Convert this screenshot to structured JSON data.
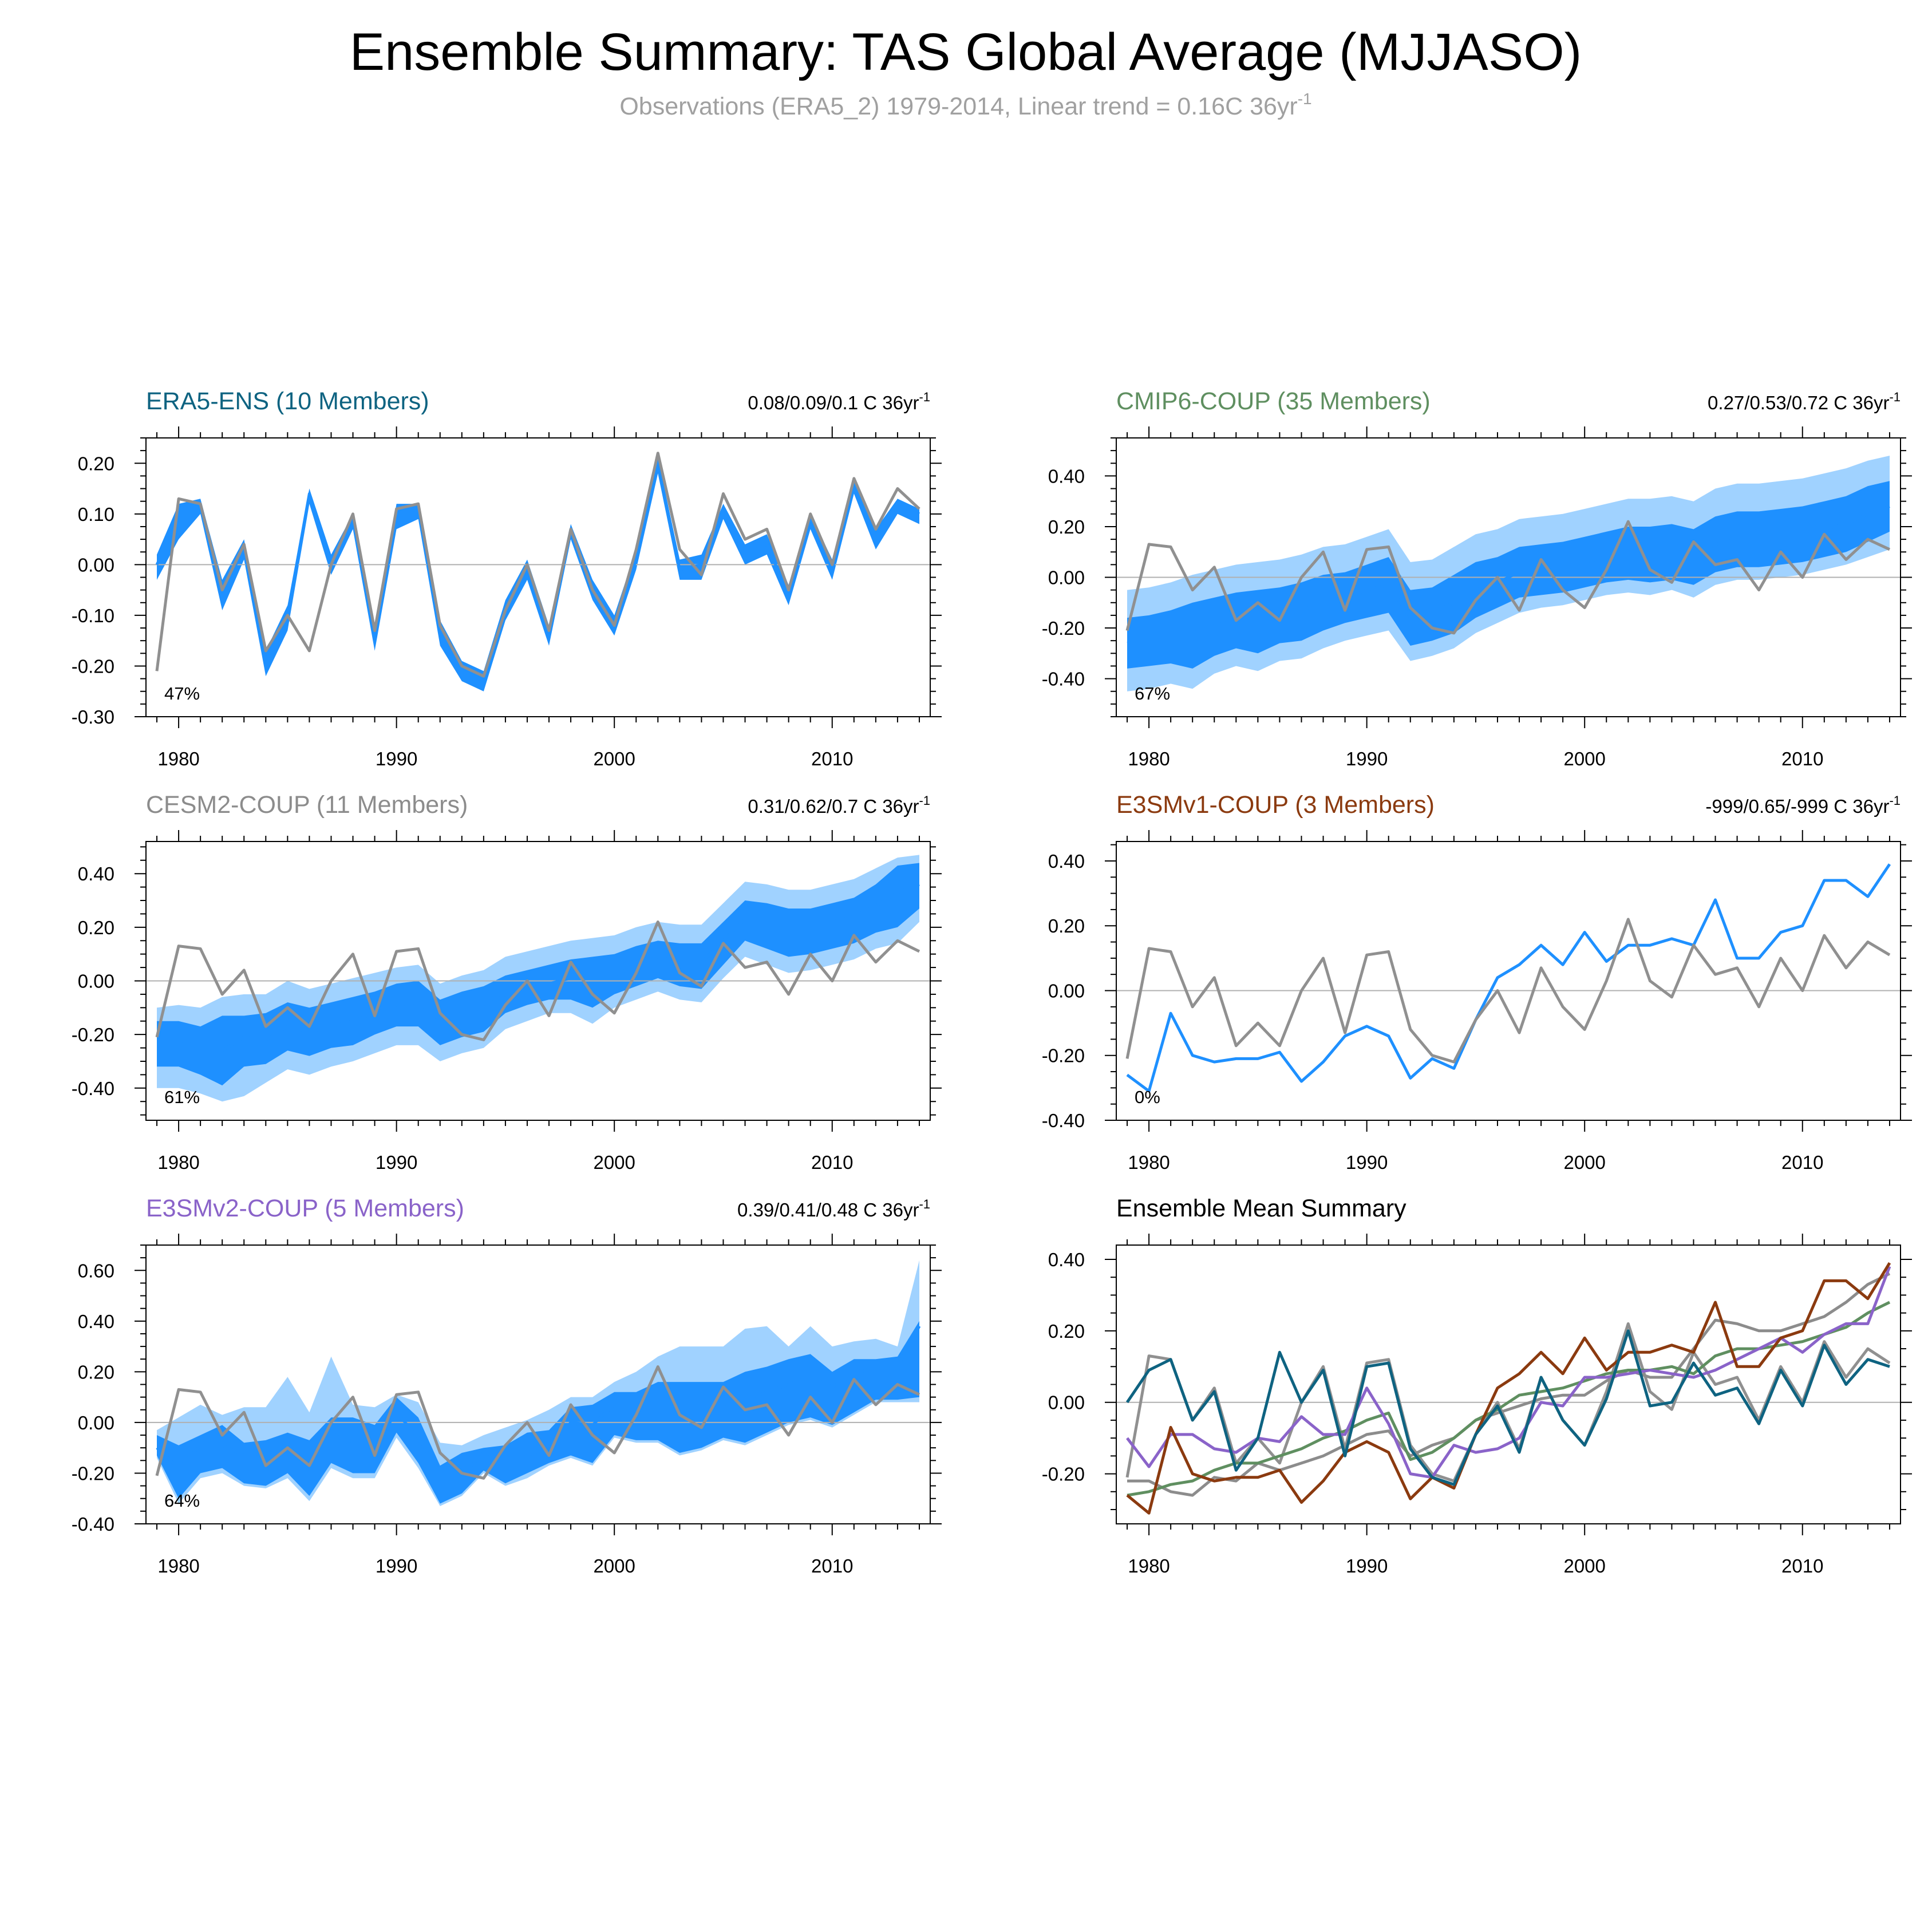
{
  "figure": {
    "title": "Ensemble Summary: TAS Global Average (MJJASO)",
    "subtitle": "Observations (ERA5_2) 1979-2014, Linear trend = 0.16C 36yr",
    "subtitle_sup": "-1"
  },
  "colors": {
    "mean_line": "#1e90ff",
    "band_inner": "#1e90ff",
    "band_outer": "#a0d2ff",
    "observations": "#909090",
    "zero_line": "#b0b0b0",
    "era5": "#0e6381",
    "cmip6": "#5f8f60",
    "cesm2": "#8c8c8c",
    "e3smv1": "#8b3a0f",
    "e3smv2": "#8a63c9"
  },
  "chart_data": [
    {
      "id": "era5",
      "type": "line",
      "title": "ERA5-ENS (10 Members)",
      "title_color": "#0e6381",
      "trend": "0.08/0.09/0.1 C 36yr",
      "trend_sup": "-1",
      "pct_label": "47%",
      "ylim": [
        -0.3,
        0.25
      ],
      "yticks": [
        -0.3,
        -0.2,
        -0.1,
        0.0,
        0.1,
        0.2
      ],
      "ytick_labels": [
        "-0.30",
        "-0.20",
        "-0.10",
        "0.00",
        "0.10",
        "0.20"
      ],
      "xlim": [
        1978.5,
        2014.5
      ],
      "xticks": [
        1980,
        1990,
        2000,
        2010
      ],
      "ytick_decimals": 2,
      "x": [
        1979,
        1980,
        1981,
        1982,
        1983,
        1984,
        1985,
        1986,
        1987,
        1988,
        1989,
        1990,
        1991,
        1992,
        1993,
        1994,
        1995,
        1996,
        1997,
        1998,
        1999,
        2000,
        2001,
        2002,
        2003,
        2004,
        2005,
        2006,
        2007,
        2008,
        2009,
        2010,
        2011,
        2012,
        2013,
        2014
      ],
      "mean": [
        0.0,
        0.09,
        0.12,
        -0.05,
        0.03,
        -0.19,
        -0.1,
        0.14,
        0.0,
        0.09,
        -0.15,
        0.1,
        0.11,
        -0.13,
        -0.21,
        -0.23,
        -0.09,
        -0.01,
        -0.14,
        0.07,
        -0.05,
        -0.12,
        0.01,
        0.2,
        -0.01,
        0.0,
        0.11,
        0.02,
        0.04,
        -0.06,
        0.09,
        -0.01,
        0.16,
        0.05,
        0.12,
        0.1
      ],
      "min": [
        -0.01,
        0.06,
        0.11,
        -0.06,
        0.02,
        -0.2,
        -0.11,
        0.13,
        -0.01,
        0.08,
        -0.16,
        0.09,
        0.1,
        -0.14,
        -0.22,
        -0.24,
        -0.1,
        -0.02,
        -0.15,
        0.06,
        -0.06,
        -0.13,
        0.0,
        0.19,
        -0.02,
        -0.01,
        0.1,
        0.01,
        0.03,
        -0.07,
        0.08,
        -0.02,
        0.15,
        0.04,
        0.11,
        0.09
      ],
      "max": [
        0.01,
        0.11,
        0.13,
        -0.04,
        0.04,
        -0.18,
        -0.09,
        0.15,
        0.01,
        0.1,
        -0.14,
        0.11,
        0.12,
        -0.12,
        -0.2,
        -0.22,
        -0.08,
        0.0,
        -0.13,
        0.08,
        -0.04,
        -0.11,
        0.02,
        0.21,
        0.0,
        0.01,
        0.12,
        0.03,
        0.05,
        -0.05,
        0.1,
        0.0,
        0.17,
        0.06,
        0.13,
        0.11
      ],
      "p10": [
        -0.03,
        0.05,
        0.1,
        -0.09,
        0.01,
        -0.22,
        -0.13,
        0.12,
        -0.02,
        0.07,
        -0.17,
        0.07,
        0.09,
        -0.16,
        -0.23,
        -0.25,
        -0.11,
        -0.03,
        -0.16,
        0.05,
        -0.07,
        -0.14,
        -0.01,
        0.18,
        -0.03,
        -0.03,
        0.09,
        0.0,
        0.02,
        -0.08,
        0.07,
        -0.03,
        0.14,
        0.03,
        0.1,
        0.08
      ],
      "p90": [
        0.02,
        0.12,
        0.13,
        -0.03,
        0.05,
        -0.17,
        -0.08,
        0.15,
        0.02,
        0.1,
        -0.13,
        0.12,
        0.12,
        -0.11,
        -0.19,
        -0.21,
        -0.07,
        0.01,
        -0.12,
        0.08,
        -0.03,
        -0.1,
        0.03,
        0.21,
        0.01,
        0.02,
        0.12,
        0.04,
        0.06,
        -0.04,
        0.1,
        0.01,
        0.17,
        0.07,
        0.13,
        0.11
      ],
      "mean_color": "#1e90ff"
    },
    {
      "id": "cmip6",
      "type": "line",
      "title": "CMIP6-COUP (35 Members)",
      "title_color": "#5f8f60",
      "trend": "0.27/0.53/0.72 C 36yr",
      "trend_sup": "-1",
      "pct_label": "67%",
      "ylim": [
        -0.55,
        0.55
      ],
      "yticks": [
        -0.4,
        -0.2,
        0.0,
        0.2,
        0.4
      ],
      "ytick_labels": [
        "-0.40",
        "-0.20",
        "0.00",
        "0.20",
        "0.40"
      ],
      "xlim": [
        1978.5,
        2014.5
      ],
      "xticks": [
        1980,
        1990,
        2000,
        2010
      ],
      "x": [
        1979,
        1980,
        1981,
        1982,
        1983,
        1984,
        1985,
        1986,
        1987,
        1988,
        1989,
        1990,
        1991,
        1992,
        1993,
        1994,
        1995,
        1996,
        1997,
        1998,
        1999,
        2000,
        2001,
        2002,
        2003,
        2004,
        2005,
        2006,
        2007,
        2008,
        2009,
        2010,
        2011,
        2012,
        2013,
        2014
      ],
      "mean": [
        -0.26,
        -0.25,
        -0.23,
        -0.22,
        -0.19,
        -0.17,
        -0.17,
        -0.15,
        -0.13,
        -0.1,
        -0.08,
        -0.05,
        -0.03,
        -0.16,
        -0.14,
        -0.1,
        -0.05,
        -0.02,
        0.02,
        0.03,
        0.04,
        0.06,
        0.08,
        0.09,
        0.09,
        0.1,
        0.08,
        0.13,
        0.15,
        0.15,
        0.16,
        0.17,
        0.19,
        0.21,
        0.25,
        0.28
      ],
      "p10": [
        -0.36,
        -0.35,
        -0.34,
        -0.36,
        -0.31,
        -0.28,
        -0.3,
        -0.26,
        -0.25,
        -0.21,
        -0.18,
        -0.16,
        -0.14,
        -0.27,
        -0.25,
        -0.22,
        -0.16,
        -0.12,
        -0.08,
        -0.07,
        -0.06,
        -0.04,
        -0.02,
        -0.01,
        -0.02,
        -0.01,
        -0.03,
        0.02,
        0.04,
        0.04,
        0.05,
        0.06,
        0.08,
        0.1,
        0.14,
        0.18
      ],
      "p90": [
        -0.16,
        -0.15,
        -0.13,
        -0.1,
        -0.08,
        -0.06,
        -0.05,
        -0.04,
        -0.02,
        0.01,
        0.02,
        0.05,
        0.08,
        -0.05,
        -0.04,
        0.01,
        0.06,
        0.08,
        0.12,
        0.13,
        0.14,
        0.16,
        0.18,
        0.2,
        0.2,
        0.21,
        0.19,
        0.24,
        0.26,
        0.26,
        0.27,
        0.28,
        0.3,
        0.32,
        0.36,
        0.38
      ],
      "min": [
        -0.45,
        -0.44,
        -0.42,
        -0.44,
        -0.38,
        -0.35,
        -0.37,
        -0.33,
        -0.32,
        -0.28,
        -0.25,
        -0.23,
        -0.21,
        -0.33,
        -0.31,
        -0.28,
        -0.22,
        -0.18,
        -0.14,
        -0.12,
        -0.11,
        -0.09,
        -0.07,
        -0.06,
        -0.07,
        -0.05,
        -0.08,
        -0.03,
        -0.01,
        -0.01,
        0.0,
        0.01,
        0.03,
        0.05,
        0.08,
        0.11
      ],
      "max": [
        -0.05,
        -0.04,
        -0.02,
        0.01,
        0.03,
        0.05,
        0.06,
        0.07,
        0.09,
        0.12,
        0.13,
        0.16,
        0.19,
        0.06,
        0.07,
        0.12,
        0.17,
        0.19,
        0.23,
        0.24,
        0.25,
        0.27,
        0.29,
        0.31,
        0.31,
        0.32,
        0.3,
        0.35,
        0.37,
        0.37,
        0.38,
        0.39,
        0.41,
        0.43,
        0.46,
        0.48
      ],
      "mean_color": "#1e90ff"
    },
    {
      "id": "cesm2",
      "type": "line",
      "title": "CESM2-COUP (11 Members)",
      "title_color": "#8c8c8c",
      "trend": "0.31/0.62/0.7 C 36yr",
      "trend_sup": "-1",
      "pct_label": "61%",
      "ylim": [
        -0.52,
        0.52
      ],
      "yticks": [
        -0.4,
        -0.2,
        0.0,
        0.2,
        0.4
      ],
      "ytick_labels": [
        "-0.40",
        "-0.20",
        "0.00",
        "0.20",
        "0.40"
      ],
      "xlim": [
        1978.5,
        2014.5
      ],
      "xticks": [
        1980,
        1990,
        2000,
        2010
      ],
      "x": [
        1979,
        1980,
        1981,
        1982,
        1983,
        1984,
        1985,
        1986,
        1987,
        1988,
        1989,
        1990,
        1991,
        1992,
        1993,
        1994,
        1995,
        1996,
        1997,
        1998,
        1999,
        2000,
        2001,
        2002,
        2003,
        2004,
        2005,
        2006,
        2007,
        2008,
        2009,
        2010,
        2011,
        2012,
        2013,
        2014
      ],
      "mean": [
        -0.22,
        -0.22,
        -0.25,
        -0.26,
        -0.21,
        -0.22,
        -0.17,
        -0.19,
        -0.17,
        -0.15,
        -0.12,
        -0.09,
        -0.08,
        -0.15,
        -0.12,
        -0.1,
        -0.05,
        -0.03,
        -0.01,
        0.01,
        0.02,
        0.02,
        0.06,
        0.09,
        0.07,
        0.07,
        0.15,
        0.23,
        0.22,
        0.2,
        0.2,
        0.22,
        0.24,
        0.28,
        0.33,
        0.36
      ],
      "p10": [
        -0.32,
        -0.32,
        -0.35,
        -0.39,
        -0.32,
        -0.31,
        -0.26,
        -0.28,
        -0.25,
        -0.24,
        -0.2,
        -0.17,
        -0.17,
        -0.24,
        -0.21,
        -0.19,
        -0.12,
        -0.09,
        -0.07,
        -0.07,
        -0.1,
        -0.05,
        -0.02,
        0.01,
        -0.02,
        -0.03,
        0.06,
        0.15,
        0.12,
        0.09,
        0.1,
        0.12,
        0.14,
        0.18,
        0.2,
        0.27
      ],
      "p90": [
        -0.15,
        -0.15,
        -0.17,
        -0.13,
        -0.13,
        -0.12,
        -0.08,
        -0.1,
        -0.08,
        -0.06,
        -0.04,
        -0.01,
        0.0,
        -0.07,
        -0.04,
        -0.02,
        0.02,
        0.04,
        0.06,
        0.08,
        0.09,
        0.1,
        0.13,
        0.15,
        0.14,
        0.14,
        0.22,
        0.3,
        0.29,
        0.27,
        0.27,
        0.29,
        0.31,
        0.36,
        0.43,
        0.44
      ],
      "min": [
        -0.4,
        -0.4,
        -0.42,
        -0.45,
        -0.43,
        -0.38,
        -0.33,
        -0.35,
        -0.32,
        -0.3,
        -0.27,
        -0.24,
        -0.24,
        -0.3,
        -0.27,
        -0.25,
        -0.18,
        -0.15,
        -0.12,
        -0.12,
        -0.16,
        -0.1,
        -0.07,
        -0.04,
        -0.07,
        -0.08,
        0.01,
        0.09,
        0.06,
        0.03,
        0.04,
        0.06,
        0.08,
        0.12,
        0.14,
        0.22
      ],
      "max": [
        -0.1,
        -0.09,
        -0.1,
        -0.06,
        -0.05,
        -0.05,
        0.0,
        -0.03,
        -0.01,
        0.01,
        0.03,
        0.05,
        0.06,
        -0.01,
        0.02,
        0.04,
        0.09,
        0.11,
        0.13,
        0.15,
        0.16,
        0.17,
        0.2,
        0.22,
        0.21,
        0.21,
        0.29,
        0.37,
        0.36,
        0.34,
        0.34,
        0.36,
        0.38,
        0.42,
        0.46,
        0.47
      ],
      "mean_color": "#1e90ff"
    },
    {
      "id": "e3smv1",
      "type": "line",
      "title": "E3SMv1-COUP (3 Members)",
      "title_color": "#8b3a0f",
      "trend": "-999/0.65/-999 C 36yr",
      "trend_sup": "-1",
      "pct_label": "0%",
      "ylim": [
        -0.4,
        0.46
      ],
      "yticks": [
        -0.4,
        -0.2,
        0.0,
        0.2,
        0.4
      ],
      "ytick_labels": [
        "-0.40",
        "-0.20",
        "0.00",
        "0.20",
        "0.40"
      ],
      "xlim": [
        1978.5,
        2014.5
      ],
      "xticks": [
        1980,
        1990,
        2000,
        2010
      ],
      "x": [
        1979,
        1980,
        1981,
        1982,
        1983,
        1984,
        1985,
        1986,
        1987,
        1988,
        1989,
        1990,
        1991,
        1992,
        1993,
        1994,
        1995,
        1996,
        1997,
        1998,
        1999,
        2000,
        2001,
        2002,
        2003,
        2004,
        2005,
        2006,
        2007,
        2008,
        2009,
        2010,
        2011,
        2012,
        2013,
        2014
      ],
      "mean": [
        -0.26,
        -0.31,
        -0.07,
        -0.2,
        -0.22,
        -0.21,
        -0.21,
        -0.19,
        -0.28,
        -0.22,
        -0.14,
        -0.11,
        -0.14,
        -0.27,
        -0.21,
        -0.24,
        -0.09,
        0.04,
        0.08,
        0.14,
        0.08,
        0.18,
        0.09,
        0.14,
        0.14,
        0.16,
        0.14,
        0.28,
        0.1,
        0.1,
        0.18,
        0.2,
        0.34,
        0.34,
        0.29,
        0.39
      ],
      "mean_color": "#1e90ff"
    },
    {
      "id": "e3smv2",
      "type": "line",
      "title": "E3SMv2-COUP (5 Members)",
      "title_color": "#8a63c9",
      "trend": "0.39/0.41/0.48 C 36yr",
      "trend_sup": "-1",
      "pct_label": "64%",
      "ylim": [
        -0.4,
        0.7
      ],
      "yticks": [
        -0.4,
        -0.2,
        0.0,
        0.2,
        0.4,
        0.6
      ],
      "ytick_labels": [
        "-0.40",
        "-0.20",
        "0.00",
        "0.20",
        "0.40",
        "0.60"
      ],
      "xlim": [
        1978.5,
        2014.5
      ],
      "xticks": [
        1980,
        1990,
        2000,
        2010
      ],
      "x": [
        1979,
        1980,
        1981,
        1982,
        1983,
        1984,
        1985,
        1986,
        1987,
        1988,
        1989,
        1990,
        1991,
        1992,
        1993,
        1994,
        1995,
        1996,
        1997,
        1998,
        1999,
        2000,
        2001,
        2002,
        2003,
        2004,
        2005,
        2006,
        2007,
        2008,
        2009,
        2010,
        2011,
        2012,
        2013,
        2014
      ],
      "mean": [
        -0.1,
        -0.18,
        -0.09,
        -0.09,
        -0.13,
        -0.14,
        -0.1,
        -0.11,
        -0.04,
        -0.09,
        -0.09,
        0.04,
        -0.06,
        -0.2,
        -0.21,
        -0.12,
        -0.14,
        -0.13,
        -0.1,
        0.0,
        -0.01,
        0.07,
        0.07,
        0.08,
        0.09,
        0.08,
        0.07,
        0.09,
        0.12,
        0.15,
        0.18,
        0.14,
        0.19,
        0.22,
        0.22,
        0.38
      ],
      "p10": [
        -0.13,
        -0.3,
        -0.2,
        -0.18,
        -0.24,
        -0.25,
        -0.2,
        -0.29,
        -0.16,
        -0.2,
        -0.2,
        -0.04,
        -0.16,
        -0.32,
        -0.28,
        -0.19,
        -0.24,
        -0.2,
        -0.16,
        -0.13,
        -0.16,
        -0.05,
        -0.07,
        -0.07,
        -0.12,
        -0.1,
        -0.06,
        -0.08,
        -0.04,
        0.0,
        0.02,
        -0.01,
        0.04,
        0.09,
        0.09,
        0.1
      ],
      "p90": [
        -0.05,
        -0.09,
        -0.05,
        -0.01,
        -0.08,
        -0.07,
        -0.04,
        -0.07,
        0.02,
        0.02,
        -0.01,
        0.1,
        0.02,
        -0.17,
        -0.12,
        -0.1,
        -0.09,
        -0.04,
        -0.03,
        0.06,
        0.07,
        0.12,
        0.12,
        0.16,
        0.16,
        0.16,
        0.16,
        0.2,
        0.22,
        0.25,
        0.27,
        0.2,
        0.25,
        0.25,
        0.26,
        0.4
      ],
      "min": [
        -0.14,
        -0.32,
        -0.22,
        -0.2,
        -0.25,
        -0.26,
        -0.22,
        -0.31,
        -0.18,
        -0.22,
        -0.22,
        -0.06,
        -0.18,
        -0.33,
        -0.29,
        -0.2,
        -0.25,
        -0.22,
        -0.17,
        -0.14,
        -0.17,
        -0.06,
        -0.08,
        -0.08,
        -0.13,
        -0.11,
        -0.07,
        -0.09,
        -0.05,
        -0.01,
        0.01,
        -0.02,
        0.03,
        0.08,
        0.08,
        0.08
      ],
      "max": [
        -0.03,
        0.02,
        0.07,
        0.03,
        0.06,
        0.06,
        0.18,
        0.04,
        0.26,
        0.07,
        0.06,
        0.11,
        0.08,
        -0.08,
        -0.09,
        -0.05,
        -0.02,
        0.01,
        0.05,
        0.1,
        0.1,
        0.16,
        0.2,
        0.26,
        0.3,
        0.3,
        0.3,
        0.37,
        0.38,
        0.3,
        0.38,
        0.3,
        0.32,
        0.33,
        0.3,
        0.64
      ],
      "mean_color": "#1e90ff"
    },
    {
      "id": "summary",
      "type": "line",
      "title": "Ensemble Mean Summary",
      "title_color": "#000000",
      "ylim": [
        -0.34,
        0.44
      ],
      "yticks": [
        -0.2,
        0.0,
        0.2,
        0.4
      ],
      "ytick_labels": [
        "-0.20",
        "0.00",
        "0.20",
        "0.40"
      ],
      "xlim": [
        1978.5,
        2014.5
      ],
      "xticks": [
        1980,
        1990,
        2000,
        2010
      ],
      "x": [
        1979,
        1980,
        1981,
        1982,
        1983,
        1984,
        1985,
        1986,
        1987,
        1988,
        1989,
        1990,
        1991,
        1992,
        1993,
        1994,
        1995,
        1996,
        1997,
        1998,
        1999,
        2000,
        2001,
        2002,
        2003,
        2004,
        2005,
        2006,
        2007,
        2008,
        2009,
        2010,
        2011,
        2012,
        2013,
        2014
      ],
      "series_keys": [
        "obs",
        "cesm2",
        "cmip6",
        "e3smv2",
        "e3smv1",
        "era5"
      ]
    }
  ],
  "observations": [
    -0.21,
    0.13,
    0.12,
    -0.05,
    0.04,
    -0.17,
    -0.1,
    -0.17,
    0.0,
    0.1,
    -0.13,
    0.11,
    0.12,
    -0.12,
    -0.2,
    -0.22,
    -0.09,
    0.0,
    -0.13,
    0.07,
    -0.05,
    -0.12,
    0.03,
    0.22,
    0.03,
    -0.02,
    0.14,
    0.05,
    0.07,
    -0.05,
    0.1,
    0.0,
    0.17,
    0.07,
    0.15,
    0.11
  ],
  "axis_labels": {
    "x": [
      "1980",
      "1990",
      "2000",
      "2010"
    ]
  }
}
